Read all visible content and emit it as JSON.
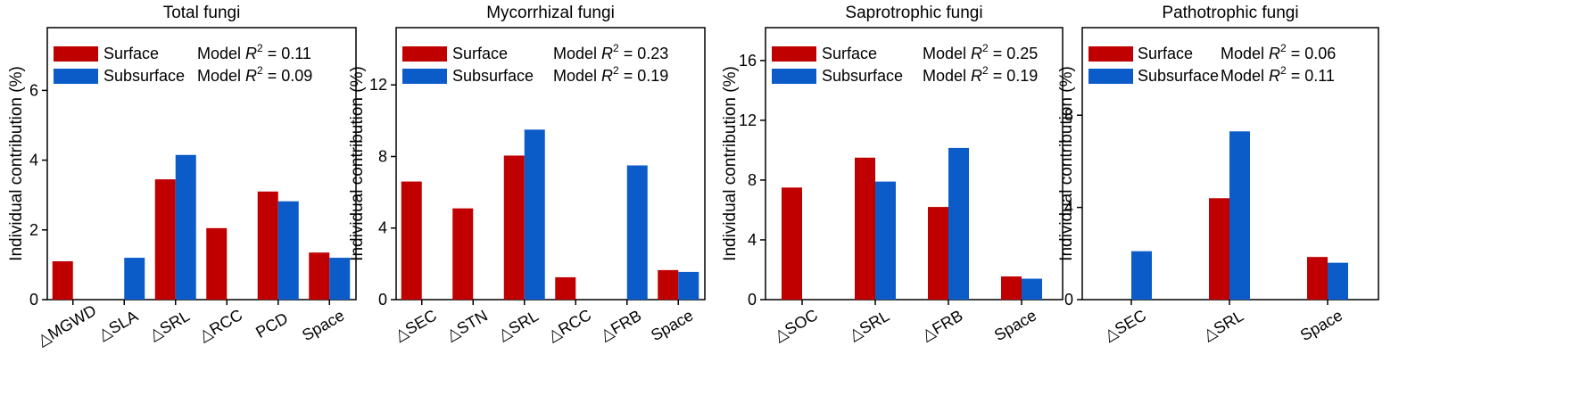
{
  "colors": {
    "surface": "#C00000",
    "subsurface": "#0B5CC8"
  },
  "chart_data": [
    {
      "type": "bar",
      "title": "Total fungi",
      "ylabel": "Individual contribution (%)",
      "ylim": [
        0,
        7.8
      ],
      "yticks": [
        0,
        2,
        4,
        6
      ],
      "categories": [
        "△MGWD",
        "△SLA",
        "△SRL",
        "△RCC",
        "PCD",
        "Space"
      ],
      "series": [
        {
          "name": "Surface",
          "values": [
            1.1,
            null,
            3.45,
            2.05,
            3.1,
            1.35
          ],
          "r2_prefix": "Model ",
          "r2_value": "= 0.11"
        },
        {
          "name": "Subsurface",
          "values": [
            null,
            1.2,
            4.15,
            null,
            2.82,
            1.2
          ],
          "r2_prefix": "Model ",
          "r2_value": "= 0.09"
        }
      ],
      "legend": "top"
    },
    {
      "type": "bar",
      "title": "Mycorrhizal fungi",
      "ylabel": "Individual contribution (%)",
      "ylim": [
        0,
        15.2
      ],
      "yticks": [
        0,
        4,
        8,
        12
      ],
      "categories": [
        "△SEC",
        "△STN",
        "△SRL",
        "△RCC",
        "△FRB",
        "Space"
      ],
      "series": [
        {
          "name": "Surface",
          "values": [
            6.6,
            5.1,
            8.05,
            1.25,
            null,
            1.65
          ],
          "r2_prefix": "Model ",
          "r2_value": "= 0.23"
        },
        {
          "name": "Subsurface",
          "values": [
            null,
            null,
            9.5,
            null,
            7.5,
            1.55
          ],
          "r2_prefix": "Model ",
          "r2_value": "= 0.19"
        }
      ],
      "legend": "top"
    },
    {
      "type": "bar",
      "title": "Saprotrophic fungi",
      "ylabel": "Individual contribution (%)",
      "ylim": [
        0,
        18.2
      ],
      "yticks": [
        0,
        4,
        8,
        12,
        16
      ],
      "categories": [
        "△SOC",
        "△SRL",
        "△FRB",
        "Space"
      ],
      "series": [
        {
          "name": "Surface",
          "values": [
            7.5,
            9.5,
            6.2,
            1.55
          ],
          "r2_prefix": "Model ",
          "r2_value": "= 0.25"
        },
        {
          "name": "Subsurface",
          "values": [
            null,
            7.9,
            10.15,
            1.4
          ],
          "r2_prefix": "Model ",
          "r2_value": "= 0.19"
        }
      ],
      "legend": "top"
    },
    {
      "type": "bar",
      "title": "Pathotrophic fungi",
      "ylabel": "Individual contribution (%)",
      "ylim": [
        0,
        11.8
      ],
      "yticks": [
        0,
        4,
        8
      ],
      "categories": [
        "△SEC",
        "△SRL",
        "Space"
      ],
      "series": [
        {
          "name": "Surface",
          "values": [
            null,
            4.4,
            1.85
          ],
          "r2_prefix": "Model ",
          "r2_value": "= 0.06"
        },
        {
          "name": "Subsurface",
          "values": [
            2.1,
            7.3,
            1.6
          ],
          "r2_prefix": "Model ",
          "r2_value": "= 0.11"
        }
      ],
      "legend": "top"
    }
  ]
}
